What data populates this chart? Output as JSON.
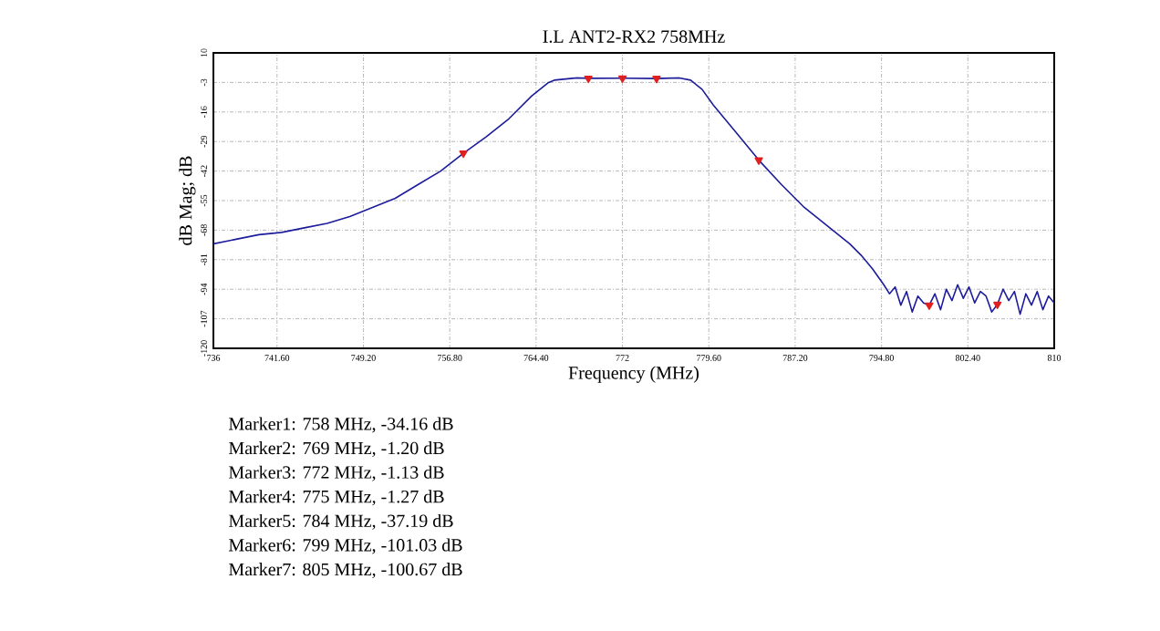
{
  "chart_data": {
    "type": "line",
    "title": "I.L  ANT2-RX2  758MHz",
    "xlabel": "Frequency (MHz)",
    "ylabel": "dB Mag; dB",
    "xlim": [
      736,
      810
    ],
    "ylim": [
      -120,
      10
    ],
    "xticks": [
      736,
      {
        "value": 741.6,
        "label": "741.60"
      },
      {
        "value": 749.2,
        "label": "749.20"
      },
      {
        "value": 756.8,
        "label": "756.80"
      },
      {
        "value": 764.4,
        "label": "764.40"
      },
      772,
      {
        "value": 779.6,
        "label": "779.60"
      },
      {
        "value": 787.2,
        "label": "787.20"
      },
      {
        "value": 794.8,
        "label": "794.80"
      },
      {
        "value": 802.4,
        "label": "802.40"
      },
      810
    ],
    "yticks": [
      10,
      -3,
      -16,
      -29,
      -42,
      -55,
      -68,
      -81,
      -94,
      -107,
      -120
    ],
    "grid": true,
    "line_style": "solid",
    "marker": "none",
    "series": [
      {
        "color": "#1c1c9c",
        "x": [
          736,
          738,
          740,
          742,
          744,
          746,
          748,
          750,
          752,
          754,
          756,
          758,
          760,
          762,
          764,
          765.5,
          766,
          768,
          769,
          772,
          775,
          777,
          778,
          779,
          780,
          782,
          784,
          786,
          788,
          790,
          792,
          793,
          794,
          795,
          795.5,
          796,
          796.5,
          797,
          797.5,
          798,
          798.5,
          799,
          799.5,
          800,
          800.5,
          801,
          801.5,
          802,
          802.5,
          803,
          803.5,
          804,
          804.5,
          805,
          805.5,
          806,
          806.5,
          807,
          807.5,
          808,
          808.5,
          809,
          809.5,
          810
        ],
        "values": [
          -74,
          -72,
          -70,
          -69,
          -67,
          -65,
          -62,
          -58,
          -54,
          -48,
          -42,
          -34.16,
          -27,
          -19,
          -9,
          -3,
          -2,
          -1,
          -1.2,
          -1.13,
          -1.27,
          -1,
          -2,
          -6,
          -13,
          -25,
          -37.19,
          -48,
          -58,
          -66,
          -74,
          -79,
          -85,
          -92,
          -96,
          -93,
          -101,
          -95,
          -104,
          -97,
          -100,
          -101.03,
          -96,
          -103,
          -94,
          -99,
          -92,
          -98,
          -93,
          -100,
          -95,
          -97,
          -104,
          -100.67,
          -94,
          -99,
          -95,
          -105,
          -96,
          -101,
          -95,
          -103,
          -97,
          -100
        ]
      },
      {
        "type": "scatter",
        "marker": "triangle",
        "color": "#e02020",
        "x": [
          758,
          769,
          772,
          775,
          784,
          799,
          805
        ],
        "values": [
          -34.16,
          -1.2,
          -1.13,
          -1.27,
          -37.19,
          -101.03,
          -100.67
        ]
      }
    ],
    "annotations": [
      "Marker1:  758 MHz,   -34.16 dB",
      "Marker2:  769 MHz,   -1.20 dB",
      "Marker3:  772 MHz,   -1.13 dB",
      "Marker4:  775 MHz,   -1.27 dB",
      "Marker5:  784 MHz,   -37.19 dB",
      "Marker6:  799 MHz,   -101.03 dB",
      "Marker7:  805 MHz,   -100.67 dB"
    ]
  }
}
